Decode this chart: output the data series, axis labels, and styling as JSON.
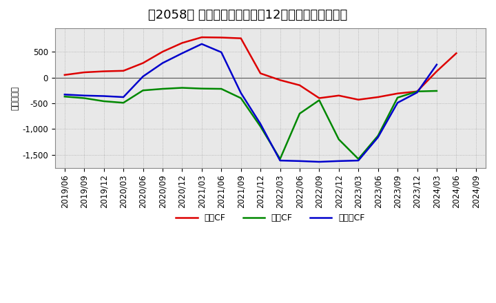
{
  "title": "［2058］ キャッシュフローの12か月移動合計の推移",
  "ylabel": "（百万円）",
  "x_labels": [
    "2019/06",
    "2019/09",
    "2019/12",
    "2020/03",
    "2020/06",
    "2020/09",
    "2020/12",
    "2021/03",
    "2021/06",
    "2021/09",
    "2021/12",
    "2022/03",
    "2022/06",
    "2022/09",
    "2022/12",
    "2023/03",
    "2023/06",
    "2023/09",
    "2023/12",
    "2024/03",
    "2024/06",
    "2024/09"
  ],
  "operating_cf": [
    50,
    100,
    120,
    130,
    280,
    500,
    670,
    780,
    775,
    760,
    80,
    -50,
    -150,
    -400,
    -350,
    -430,
    -380,
    -310,
    -270,
    120,
    470,
    null
  ],
  "investing_cf": [
    -370,
    -400,
    -460,
    -490,
    -250,
    -220,
    -200,
    -215,
    -220,
    -400,
    -950,
    -1580,
    -700,
    -440,
    -1200,
    -1580,
    -1130,
    -390,
    -270,
    -260,
    null,
    null
  ],
  "free_cf": [
    -330,
    -350,
    -360,
    -380,
    20,
    280,
    470,
    650,
    490,
    -300,
    -900,
    -1610,
    -1620,
    -1635,
    -1620,
    -1610,
    -1160,
    -490,
    -290,
    250,
    null,
    null
  ],
  "legend": [
    "営業CF",
    "投資CF",
    "フリーCF"
  ],
  "colors": [
    "#dd0000",
    "#008800",
    "#0000cc"
  ],
  "ylim": [
    -1750,
    950
  ],
  "yticks": [
    500,
    0,
    -500,
    -1000,
    -1500
  ],
  "background_color": "#ffffff",
  "grid_color": "#aaaaaa",
  "title_fontsize": 13,
  "axis_fontsize": 8.5
}
